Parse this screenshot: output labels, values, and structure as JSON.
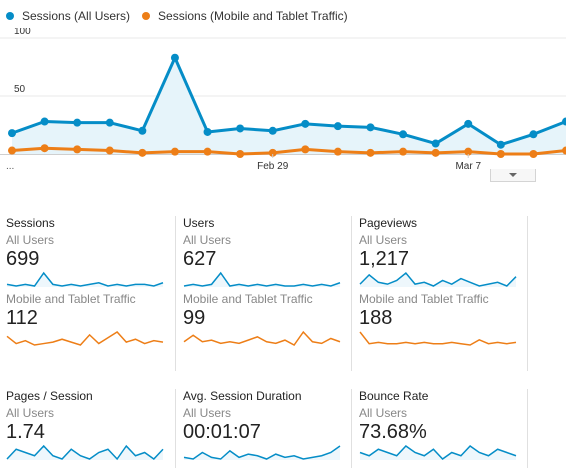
{
  "legend": [
    {
      "label": "Sessions (All Users)",
      "color": "#058dc7"
    },
    {
      "label": "Sessions (Mobile and Tablet Traffic)",
      "color": "#ed7e17"
    }
  ],
  "chart_data": {
    "type": "line",
    "x_tick_labels": [
      {
        "index": 8,
        "label": "Feb 29"
      },
      {
        "index": 14,
        "label": "Mar 7"
      }
    ],
    "x_start_label": "...",
    "y_ticks": [
      100,
      50
    ],
    "ylim": [
      0,
      100
    ],
    "series": [
      {
        "name": "Sessions (All Users)",
        "color": "#058dc7",
        "values": [
          18,
          28,
          27,
          27,
          20,
          83,
          19,
          22,
          20,
          26,
          24,
          23,
          17,
          9,
          26,
          8,
          17,
          28
        ]
      },
      {
        "name": "Sessions (Mobile and Tablet Traffic)",
        "color": "#ed7e17",
        "values": [
          3,
          5,
          4,
          3,
          1,
          2,
          2,
          0,
          1,
          4,
          2,
          1,
          2,
          1,
          2,
          0,
          0,
          3
        ]
      }
    ]
  },
  "tiles": [
    {
      "title": "Sessions",
      "seg1": "All Users",
      "value1": "699",
      "seg2": "Mobile and Tablet Traffic",
      "value2": "112",
      "spark1": [
        4,
        3,
        4,
        3,
        11,
        4,
        3,
        4,
        3,
        4,
        5,
        3,
        4,
        3,
        4,
        4,
        3,
        5
      ],
      "spark2": [
        8,
        3,
        5,
        2,
        3,
        4,
        6,
        4,
        2,
        9,
        3,
        7,
        11,
        4,
        6,
        3,
        5,
        4
      ]
    },
    {
      "title": "Users",
      "seg1": "All Users",
      "value1": "627",
      "seg2": "Mobile and Tablet Traffic",
      "value2": "99",
      "spark1": [
        3,
        4,
        3,
        4,
        11,
        3,
        4,
        3,
        4,
        3,
        4,
        3,
        3,
        4,
        3,
        4,
        3,
        5
      ],
      "spark2": [
        4,
        8,
        4,
        5,
        3,
        4,
        3,
        5,
        7,
        4,
        3,
        5,
        2,
        10,
        4,
        3,
        6,
        4
      ]
    },
    {
      "title": "Pageviews",
      "seg1": "All Users",
      "value1": "1,217",
      "seg2": "Mobile and Tablet Traffic",
      "value2": "188",
      "spark1": [
        4,
        9,
        5,
        4,
        6,
        10,
        4,
        5,
        3,
        6,
        4,
        7,
        5,
        3,
        4,
        5,
        3,
        8
      ],
      "spark2": [
        12,
        3,
        4,
        3,
        3,
        4,
        3,
        4,
        3,
        3,
        4,
        3,
        2,
        6,
        3,
        4,
        3,
        4
      ]
    },
    {
      "title": "Pages / Session",
      "seg1": "All Users",
      "value1": "1.74",
      "seg2": "",
      "value2": "",
      "spark1": [
        3,
        6,
        5,
        4,
        7,
        4,
        3,
        6,
        4,
        3,
        5,
        6,
        3,
        7,
        4,
        5,
        3,
        6
      ],
      "spark2": []
    },
    {
      "title": "Avg. Session Duration",
      "seg1": "All Users",
      "value1": "00:01:07",
      "seg2": "",
      "value2": "",
      "spark1": [
        4,
        3,
        7,
        4,
        3,
        8,
        4,
        6,
        5,
        3,
        6,
        4,
        5,
        3,
        4,
        5,
        7,
        11
      ],
      "spark2": []
    },
    {
      "title": "Bounce Rate",
      "seg1": "All Users",
      "value1": "73.68%",
      "seg2": "",
      "value2": "",
      "spark1": [
        5,
        4,
        6,
        5,
        4,
        7,
        5,
        4,
        6,
        3,
        5,
        4,
        7,
        5,
        4,
        6,
        5,
        4
      ],
      "spark2": []
    }
  ],
  "colors": {
    "blue": "#058dc7",
    "orange": "#ed7e17",
    "fill": "#e6f4fa",
    "grid": "#e9e9e9"
  }
}
